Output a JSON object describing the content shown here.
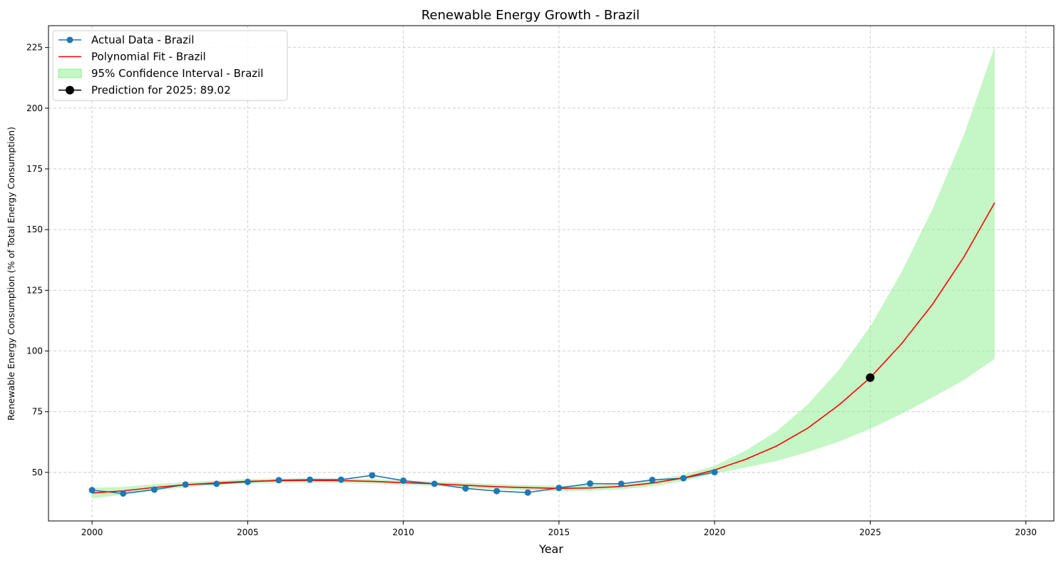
{
  "chart_data": {
    "type": "line",
    "title": "Renewable Energy Growth - Brazil",
    "xlabel": "Year",
    "ylabel": "Renewable Energy Consumption (% of Total Energy Consumption)",
    "xlim": [
      1998.6,
      2030.9
    ],
    "ylim": [
      30.0,
      234.0
    ],
    "xticks": [
      2000,
      2005,
      2010,
      2015,
      2020,
      2025,
      2030
    ],
    "yticks": [
      50,
      75,
      100,
      125,
      150,
      175,
      200,
      225
    ],
    "grid": true,
    "legend_position": "top-left",
    "series": [
      {
        "name": "Actual Data - Brazil",
        "kind": "line-marker",
        "color": "#1f77b4",
        "x": [
          2000,
          2001,
          2002,
          2003,
          2004,
          2005,
          2006,
          2007,
          2008,
          2009,
          2010,
          2011,
          2012,
          2013,
          2014,
          2015,
          2016,
          2017,
          2018,
          2019,
          2020
        ],
        "y": [
          42.7,
          41.3,
          42.9,
          45.0,
          45.3,
          46.1,
          46.8,
          47.0,
          47.0,
          48.8,
          46.6,
          45.3,
          43.4,
          42.3,
          41.7,
          43.6,
          45.4,
          45.3,
          46.9,
          47.6,
          50.1
        ]
      },
      {
        "name": "Polynomial Fit - Brazil",
        "kind": "line",
        "color": "#ff0000",
        "x": [
          2000,
          2001,
          2002,
          2003,
          2004,
          2005,
          2006,
          2007,
          2008,
          2009,
          2010,
          2011,
          2012,
          2013,
          2014,
          2015,
          2016,
          2017,
          2018,
          2019,
          2020,
          2021,
          2022,
          2023,
          2024,
          2025,
          2026,
          2027,
          2028,
          2029
        ],
        "y": [
          41.5,
          42.4,
          43.8,
          44.9,
          45.7,
          46.3,
          46.6,
          46.7,
          46.6,
          46.3,
          45.8,
          45.3,
          44.7,
          44.1,
          43.7,
          43.4,
          43.6,
          44.2,
          45.6,
          47.7,
          51.0,
          55.4,
          60.9,
          68.3,
          77.8,
          89.02,
          102.9,
          119.2,
          138.5,
          161.1
        ]
      },
      {
        "name": "95% Confidence Interval - Brazil",
        "kind": "band",
        "color": "#90ee90",
        "x": [
          2000,
          2001,
          2002,
          2003,
          2004,
          2005,
          2006,
          2007,
          2008,
          2009,
          2010,
          2011,
          2012,
          2013,
          2014,
          2015,
          2016,
          2017,
          2018,
          2019,
          2020,
          2021,
          2022,
          2023,
          2024,
          2025,
          2026,
          2027,
          2028,
          2029
        ],
        "lower": [
          39.3,
          40.8,
          42.5,
          43.8,
          44.8,
          45.4,
          45.7,
          45.8,
          45.7,
          45.4,
          44.9,
          44.4,
          43.7,
          43.1,
          42.6,
          42.3,
          42.4,
          43.0,
          44.3,
          46.4,
          49.5,
          52.0,
          54.7,
          58.4,
          62.7,
          67.9,
          74.1,
          80.8,
          88.0,
          96.8
        ],
        "upper": [
          43.7,
          44.0,
          45.1,
          46.0,
          46.6,
          47.2,
          47.5,
          47.6,
          47.5,
          47.2,
          46.7,
          46.2,
          45.7,
          45.1,
          44.8,
          44.5,
          44.8,
          45.4,
          46.9,
          49.0,
          52.7,
          59.0,
          67.0,
          78.1,
          92.3,
          110.1,
          132.3,
          158.4,
          188.6,
          225.4
        ]
      },
      {
        "name": "Prediction for 2025: 89.02",
        "kind": "marker",
        "color": "#000000",
        "x": [
          2025
        ],
        "y": [
          89.02
        ]
      }
    ]
  }
}
